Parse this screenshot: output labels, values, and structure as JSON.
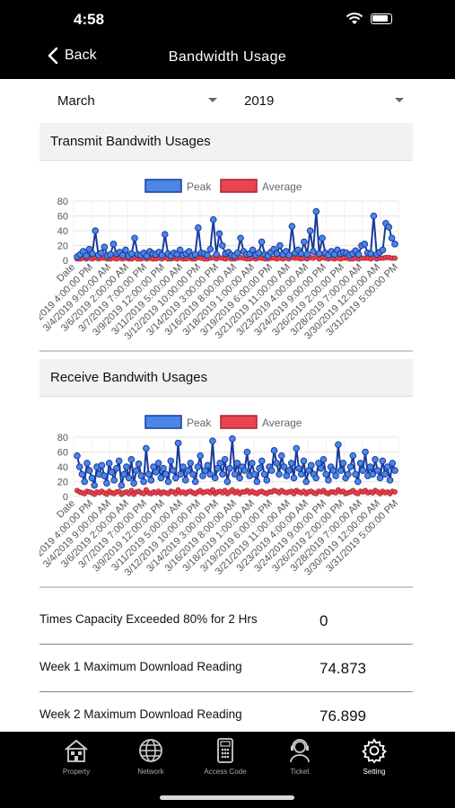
{
  "status": {
    "time": "4:58"
  },
  "nav": {
    "back_label": "Back",
    "title": "Bandwidth Usage"
  },
  "filters": {
    "month": "March",
    "year": "2019"
  },
  "colors": {
    "peak": "#4a86e8",
    "peak_stroke": "#1a3a9a",
    "average": "#e8454f"
  },
  "legend": {
    "peak": "Peak",
    "average": "Average"
  },
  "x_tick_labels": [
    "Date",
    "3/3/2019 4:00:00 PM",
    "3/4/2019 9:00:00 AM",
    "3/6/2019 2:00:00 AM",
    "3/7/2019 7:00:00 PM",
    "3/9/2019 12:00:00 PM",
    "3/11/2019 5:00:00 AM",
    "3/12/2019 10:00:00 PM",
    "3/14/2019 3:00:00 PM",
    "3/16/2019 8:00:00 AM",
    "3/18/2019 1:00:00 AM",
    "3/19/2019 6:00:00 PM",
    "3/21/2019 11:00:00 AM",
    "3/23/2019 4:00:00 AM",
    "3/24/2019 9:00:00 PM",
    "3/26/2019 2:00:00 PM",
    "3/28/2019 7:00:00 AM",
    "3/30/2019 12:00:00 AM",
    "3/31/2019 5:00:00 PM"
  ],
  "y_ticks": [
    "80",
    "60",
    "40",
    "20",
    "0"
  ],
  "transmit": {
    "title": "Transmit Bandwith Usages",
    "chart_data": {
      "type": "line",
      "ylim": [
        0,
        80
      ],
      "series": [
        {
          "name": "Peak",
          "values": [
            5,
            8,
            12,
            6,
            15,
            9,
            40,
            7,
            10,
            18,
            6,
            8,
            22,
            9,
            11,
            7,
            14,
            6,
            9,
            30,
            8,
            7,
            10,
            6,
            12,
            9,
            8,
            11,
            7,
            35,
            9,
            6,
            10,
            8,
            14,
            7,
            9,
            12,
            6,
            8,
            44,
            10,
            9,
            7,
            15,
            55,
            8,
            36,
            20,
            9,
            11,
            7,
            6,
            10,
            30,
            12,
            8,
            9,
            14,
            7,
            10,
            25,
            8,
            6,
            11,
            15,
            9,
            20,
            8,
            12,
            7,
            46,
            10,
            14,
            9,
            25,
            8,
            40,
            12,
            66,
            9,
            30,
            10,
            7,
            12,
            8,
            14,
            9,
            11,
            10,
            7,
            9,
            13,
            8,
            20,
            22,
            10,
            9,
            60,
            8,
            11,
            14,
            50,
            45,
            30,
            22
          ]
        },
        {
          "name": "Average",
          "values": [
            2,
            2,
            3,
            2,
            3,
            2,
            4,
            2,
            3,
            3,
            2,
            2,
            3,
            2,
            3,
            2,
            3,
            2,
            2,
            4,
            2,
            2,
            3,
            2,
            3,
            2,
            2,
            3,
            2,
            4,
            2,
            2,
            3,
            2,
            3,
            2,
            2,
            3,
            2,
            2,
            4,
            3,
            2,
            2,
            3,
            4,
            2,
            4,
            3,
            2,
            3,
            2,
            2,
            3,
            4,
            3,
            2,
            2,
            3,
            2,
            3,
            3,
            2,
            2,
            3,
            3,
            2,
            3,
            2,
            3,
            2,
            4,
            3,
            3,
            2,
            3,
            2,
            4,
            3,
            5,
            2,
            4,
            3,
            2,
            3,
            2,
            3,
            2,
            3,
            3,
            2,
            2,
            3,
            2,
            3,
            3,
            3,
            2,
            4,
            2,
            3,
            3,
            4,
            4,
            3,
            3
          ]
        }
      ]
    }
  },
  "receive": {
    "title": "Receive Bandwith Usages",
    "chart_data": {
      "type": "line",
      "ylim": [
        0,
        80
      ],
      "series": [
        {
          "name": "Peak",
          "values": [
            55,
            40,
            30,
            20,
            45,
            35,
            25,
            15,
            40,
            30,
            42,
            28,
            18,
            45,
            33,
            22,
            38,
            48,
            15,
            30,
            40,
            25,
            50,
            18,
            35,
            44,
            28,
            20,
            65,
            30,
            22,
            40,
            33,
            45,
            25,
            38,
            30,
            20,
            48,
            35,
            25,
            72,
            30,
            40,
            22,
            35,
            45,
            30,
            20,
            40,
            55,
            28,
            35,
            42,
            30,
            75,
            25,
            38,
            45,
            30,
            50,
            20,
            38,
            78,
            30,
            45,
            25,
            40,
            35,
            60,
            28,
            45,
            30,
            20,
            38,
            48,
            30,
            22,
            40,
            35,
            62,
            45,
            30,
            55,
            40,
            28,
            35,
            45,
            25,
            65,
            38,
            30,
            48,
            20,
            35,
            42,
            30,
            25,
            45,
            38,
            50,
            30,
            22,
            40,
            35,
            28,
            70,
            35,
            45,
            25,
            30,
            40,
            55,
            30,
            20,
            45,
            35,
            60,
            28,
            40,
            30,
            50,
            35,
            25,
            48,
            30,
            40,
            22,
            45,
            35
          ]
        },
        {
          "name": "Average",
          "values": [
            8,
            6,
            5,
            4,
            7,
            6,
            5,
            3,
            6,
            5,
            7,
            5,
            3,
            7,
            5,
            4,
            6,
            7,
            3,
            5,
            6,
            4,
            8,
            3,
            6,
            7,
            5,
            4,
            9,
            5,
            4,
            6,
            5,
            7,
            4,
            6,
            5,
            4,
            7,
            6,
            4,
            9,
            5,
            6,
            4,
            6,
            7,
            5,
            4,
            6,
            8,
            5,
            6,
            7,
            5,
            9,
            4,
            6,
            7,
            5,
            8,
            4,
            6,
            9,
            5,
            7,
            4,
            6,
            6,
            8,
            5,
            7,
            5,
            4,
            6,
            7,
            5,
            4,
            6,
            6,
            8,
            7,
            5,
            8,
            6,
            5,
            6,
            7,
            4,
            8,
            6,
            5,
            7,
            4,
            6,
            7,
            5,
            4,
            7,
            6,
            8,
            5,
            4,
            6,
            6,
            5,
            9,
            6,
            7,
            4,
            5,
            6,
            8,
            5,
            4,
            7,
            6,
            8,
            5,
            6,
            5,
            8,
            6,
            4,
            7,
            5,
            6,
            4,
            7,
            6
          ]
        }
      ]
    }
  },
  "stats": [
    {
      "label": "Times Capacity Exceeded 80% for 2 Hrs",
      "value": "0"
    },
    {
      "label": "Week 1 Maximum Download Reading",
      "value": "74.873"
    },
    {
      "label": "Week 2 Maximum Download Reading",
      "value": "76.899"
    }
  ],
  "tabs": [
    {
      "label": "Property",
      "icon": "property-icon"
    },
    {
      "label": "Network",
      "icon": "globe-icon"
    },
    {
      "label": "Access Code",
      "icon": "keypad-icon"
    },
    {
      "label": "Ticket",
      "icon": "support-agent-icon"
    },
    {
      "label": "Setting",
      "icon": "gear-icon"
    }
  ]
}
